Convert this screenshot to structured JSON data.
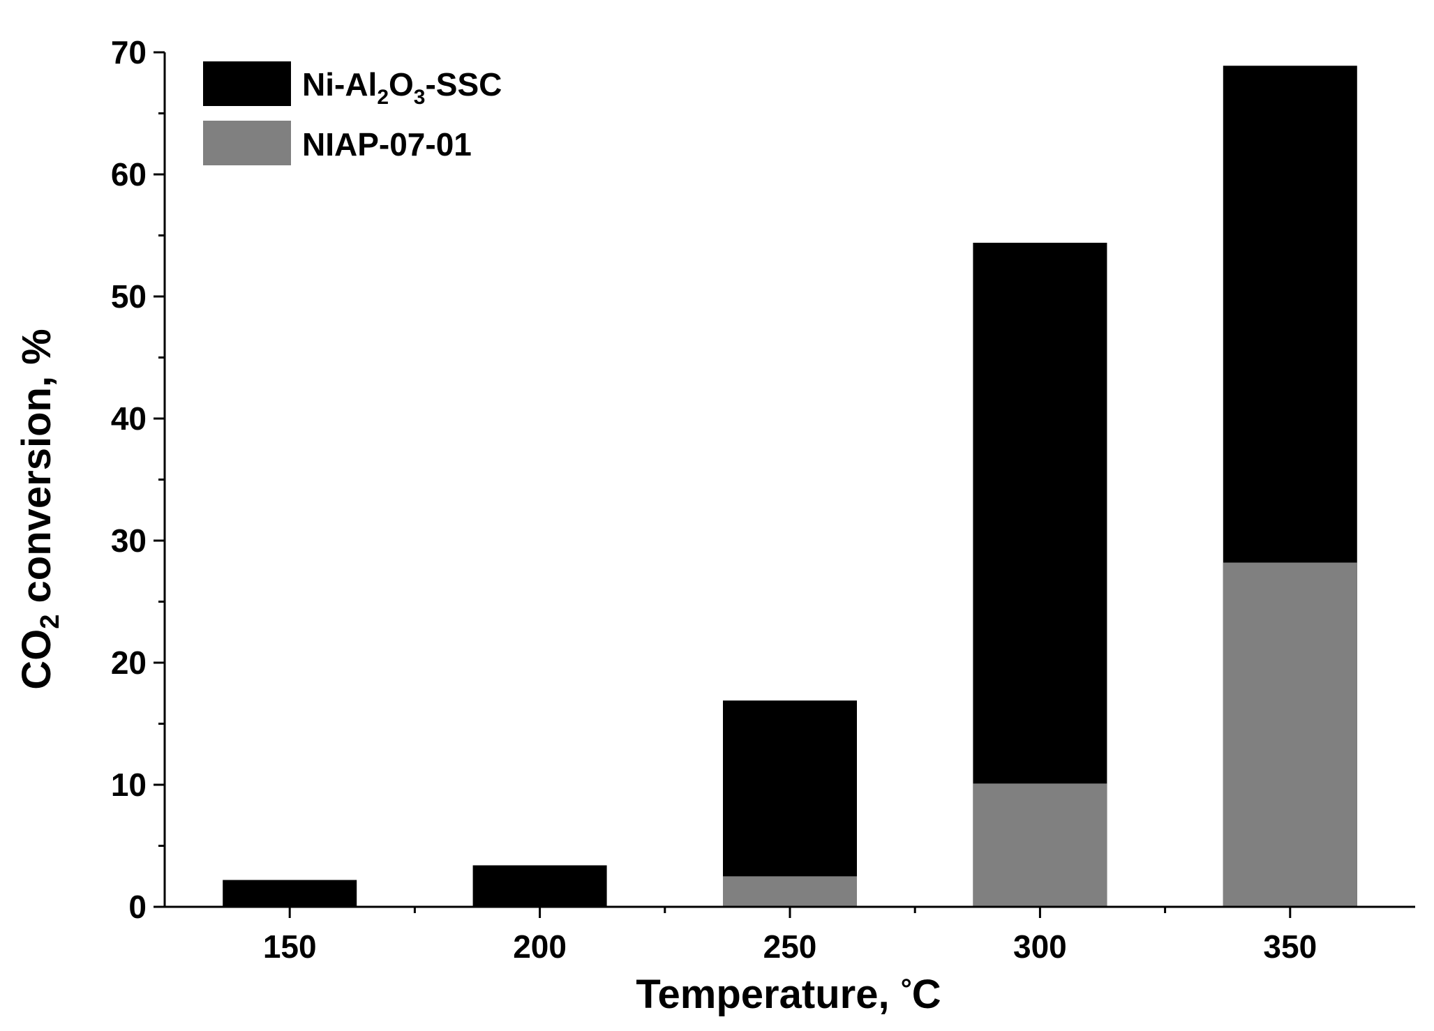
{
  "chart_data": {
    "type": "bar",
    "layout": "overlapped",
    "categories": [
      "150",
      "200",
      "250",
      "300",
      "350"
    ],
    "series": [
      {
        "name": "Ni-Al2O3-SSC",
        "name_parts": [
          "Ni-Al",
          "2",
          "O",
          "3",
          "-SSC"
        ],
        "color": "#000000",
        "values": [
          2.2,
          3.4,
          16.9,
          54.4,
          68.9
        ]
      },
      {
        "name": "NIAP-07-01",
        "color": "#808080",
        "values": [
          0,
          0,
          2.5,
          10.1,
          28.2
        ]
      }
    ],
    "xlabel": "Temperature, °C",
    "xlabel_parts": [
      "Temperature, ",
      "°",
      "C"
    ],
    "ylabel": "CO2 conversion, %",
    "ylabel_parts": [
      "CO",
      "2",
      " conversion, %"
    ],
    "yticks": [
      "0",
      "10",
      "20",
      "30",
      "40",
      "50",
      "60",
      "70"
    ],
    "ylim": [
      0,
      70
    ],
    "grid": false,
    "legend_position": "top-left"
  }
}
